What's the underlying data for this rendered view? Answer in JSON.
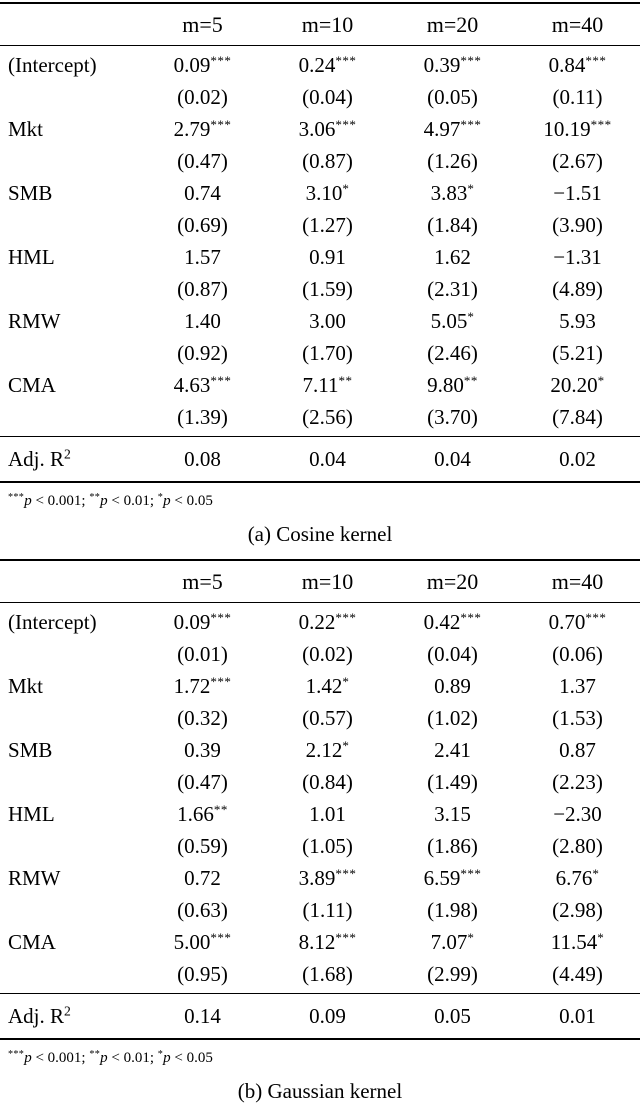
{
  "colors": {
    "background": "#ffffff",
    "text": "#000000",
    "rule": "#000000"
  },
  "tables": [
    {
      "id": "cosine",
      "caption": "(a) Cosine kernel",
      "header": {
        "label": "",
        "columns": [
          "m=5",
          "m=10",
          "m=20",
          "m=40"
        ]
      },
      "coefficients": [
        {
          "label": "(Intercept)",
          "estimates": [
            "0.09",
            "0.24",
            "0.39",
            "0.84"
          ],
          "stars": [
            "***",
            "***",
            "***",
            "***"
          ],
          "std_errors": [
            "(0.02)",
            "(0.04)",
            "(0.05)",
            "(0.11)"
          ]
        },
        {
          "label": "Mkt",
          "estimates": [
            "2.79",
            "3.06",
            "4.97",
            "10.19"
          ],
          "stars": [
            "***",
            "***",
            "***",
            "***"
          ],
          "std_errors": [
            "(0.47)",
            "(0.87)",
            "(1.26)",
            "(2.67)"
          ]
        },
        {
          "label": "SMB",
          "estimates": [
            "0.74",
            "3.10",
            "3.83",
            "−1.51"
          ],
          "stars": [
            "",
            "*",
            "*",
            ""
          ],
          "std_errors": [
            "(0.69)",
            "(1.27)",
            "(1.84)",
            "(3.90)"
          ]
        },
        {
          "label": "HML",
          "estimates": [
            "1.57",
            "0.91",
            "1.62",
            "−1.31"
          ],
          "stars": [
            "",
            "",
            "",
            ""
          ],
          "std_errors": [
            "(0.87)",
            "(1.59)",
            "(2.31)",
            "(4.89)"
          ]
        },
        {
          "label": "RMW",
          "estimates": [
            "1.40",
            "3.00",
            "5.05",
            "5.93"
          ],
          "stars": [
            "",
            "",
            "*",
            ""
          ],
          "std_errors": [
            "(0.92)",
            "(1.70)",
            "(2.46)",
            "(5.21)"
          ]
        },
        {
          "label": "CMA",
          "estimates": [
            "4.63",
            "7.11",
            "9.80",
            "20.20"
          ],
          "stars": [
            "***",
            "**",
            "**",
            "*"
          ],
          "std_errors": [
            "(1.39)",
            "(2.56)",
            "(3.70)",
            "(7.84)"
          ]
        }
      ],
      "adj_r2": {
        "label_base": "Adj. R",
        "label_sup": "2",
        "values": [
          "0.08",
          "0.04",
          "0.04",
          "0.02"
        ]
      },
      "footnote": [
        {
          "stars": "***",
          "variable": "p",
          "condition": "< 0.001;"
        },
        {
          "stars": "**",
          "variable": "p",
          "condition": "< 0.01;"
        },
        {
          "stars": "*",
          "variable": "p",
          "condition": "< 0.05"
        }
      ]
    },
    {
      "id": "gaussian",
      "caption": "(b) Gaussian kernel",
      "header": {
        "label": "",
        "columns": [
          "m=5",
          "m=10",
          "m=20",
          "m=40"
        ]
      },
      "coefficients": [
        {
          "label": "(Intercept)",
          "estimates": [
            "0.09",
            "0.22",
            "0.42",
            "0.70"
          ],
          "stars": [
            "***",
            "***",
            "***",
            "***"
          ],
          "std_errors": [
            "(0.01)",
            "(0.02)",
            "(0.04)",
            "(0.06)"
          ]
        },
        {
          "label": "Mkt",
          "estimates": [
            "1.72",
            "1.42",
            "0.89",
            "1.37"
          ],
          "stars": [
            "***",
            "*",
            "",
            ""
          ],
          "std_errors": [
            "(0.32)",
            "(0.57)",
            "(1.02)",
            "(1.53)"
          ]
        },
        {
          "label": "SMB",
          "estimates": [
            "0.39",
            "2.12",
            "2.41",
            "0.87"
          ],
          "stars": [
            "",
            "*",
            "",
            ""
          ],
          "std_errors": [
            "(0.47)",
            "(0.84)",
            "(1.49)",
            "(2.23)"
          ]
        },
        {
          "label": "HML",
          "estimates": [
            "1.66",
            "1.01",
            "3.15",
            "−2.30"
          ],
          "stars": [
            "**",
            "",
            "",
            ""
          ],
          "std_errors": [
            "(0.59)",
            "(1.05)",
            "(1.86)",
            "(2.80)"
          ]
        },
        {
          "label": "RMW",
          "estimates": [
            "0.72",
            "3.89",
            "6.59",
            "6.76"
          ],
          "stars": [
            "",
            "***",
            "***",
            "*"
          ],
          "std_errors": [
            "(0.63)",
            "(1.11)",
            "(1.98)",
            "(2.98)"
          ]
        },
        {
          "label": "CMA",
          "estimates": [
            "5.00",
            "8.12",
            "7.07",
            "11.54"
          ],
          "stars": [
            "***",
            "***",
            "*",
            "*"
          ],
          "std_errors": [
            "(0.95)",
            "(1.68)",
            "(2.99)",
            "(4.49)"
          ]
        }
      ],
      "adj_r2": {
        "label_base": "Adj. R",
        "label_sup": "2",
        "values": [
          "0.14",
          "0.09",
          "0.05",
          "0.01"
        ]
      },
      "footnote": [
        {
          "stars": "***",
          "variable": "p",
          "condition": "< 0.001;"
        },
        {
          "stars": "**",
          "variable": "p",
          "condition": "< 0.01;"
        },
        {
          "stars": "*",
          "variable": "p",
          "condition": "< 0.05"
        }
      ]
    }
  ]
}
